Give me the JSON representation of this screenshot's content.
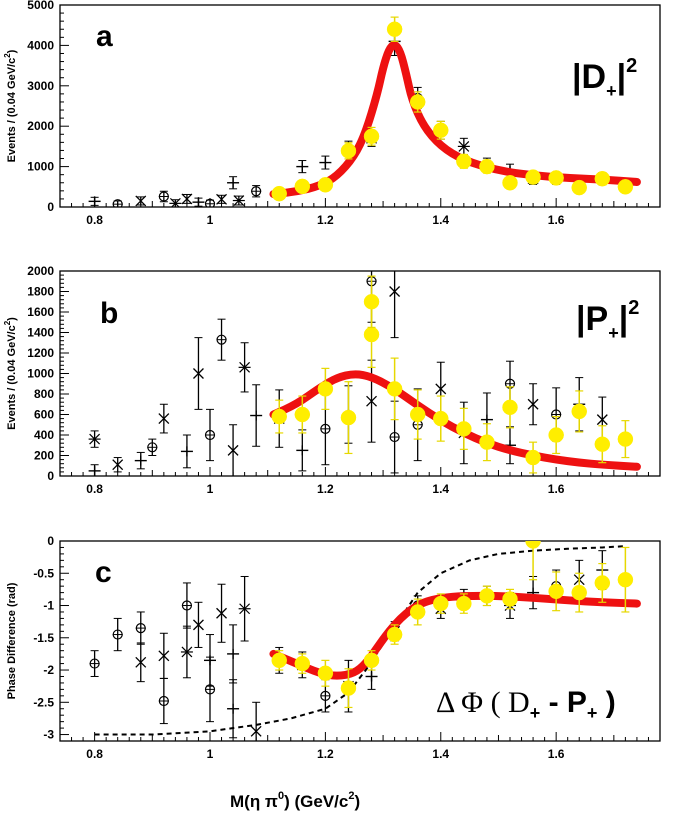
{
  "chart_data": [
    {
      "type": "scatter",
      "panel": "a",
      "title": "a",
      "annotation_main": "|D",
      "annotation_sub": "+",
      "annotation_sup": "2",
      "xlabel": "",
      "ylabel": "Events / (0.04 GeV/c",
      "ylabel_sup": "2",
      "ylabel_close": ")",
      "xlim": [
        0.74,
        1.78
      ],
      "ylim": [
        0,
        5000
      ],
      "xticks": [
        0.8,
        1.0,
        1.2,
        1.4,
        1.6
      ],
      "xtick_labels": [
        "0.8",
        "1",
        "1.2",
        "1.4",
        "1.6"
      ],
      "yticks": [
        0,
        1000,
        2000,
        3000,
        4000,
        5000
      ],
      "ytick_labels": [
        "0",
        "1000",
        "2000",
        "3000",
        "4000",
        "5000"
      ],
      "grid": false,
      "series": [
        {
          "name": "Black markers",
          "x": [
            0.8,
            0.84,
            0.88,
            0.92,
            0.94,
            0.96,
            0.98,
            1.0,
            1.02,
            1.04,
            1.05,
            1.08,
            1.16,
            1.2,
            1.24,
            1.28,
            1.32,
            1.36,
            1.4,
            1.44,
            1.48,
            1.52,
            1.56,
            1.6,
            1.64,
            1.68
          ],
          "y": [
            140,
            70,
            150,
            260,
            90,
            200,
            120,
            80,
            190,
            600,
            160,
            390,
            1000,
            1100,
            1450,
            1700,
            4100,
            2700,
            1900,
            1500,
            1050,
            900,
            700,
            700,
            500,
            700
          ],
          "err": [
            100,
            80,
            100,
            130,
            90,
            110,
            100,
            90,
            100,
            150,
            110,
            140,
            150,
            160,
            180,
            200,
            350,
            260,
            220,
            200,
            160,
            160,
            140,
            140,
            140,
            150
          ],
          "markers": [
            "plus",
            "circle",
            "x",
            "circle",
            "star",
            "x",
            "plus",
            "circle",
            "x",
            "plus",
            "star",
            "circle",
            "plus",
            "plus",
            "circle",
            "star",
            "plus",
            "circle",
            "plus",
            "star",
            "circle",
            "plus",
            "x",
            "circle",
            "plus",
            "star"
          ]
        },
        {
          "name": "Yellow points",
          "x": [
            1.12,
            1.16,
            1.2,
            1.24,
            1.28,
            1.32,
            1.36,
            1.4,
            1.44,
            1.48,
            1.52,
            1.56,
            1.6,
            1.64,
            1.68,
            1.72
          ],
          "y": [
            330,
            510,
            550,
            1390,
            1750,
            4400,
            2600,
            1900,
            1130,
            1000,
            600,
            740,
            720,
            480,
            700,
            500
          ],
          "err": [
            110,
            130,
            140,
            200,
            220,
            300,
            250,
            220,
            170,
            160,
            140,
            140,
            140,
            130,
            140,
            130
          ]
        },
        {
          "name": "Fit",
          "x": [
            1.11,
            1.15,
            1.19,
            1.22,
            1.25,
            1.27,
            1.29,
            1.3,
            1.31,
            1.32,
            1.33,
            1.34,
            1.35,
            1.37,
            1.4,
            1.44,
            1.5,
            1.56,
            1.62,
            1.68,
            1.74
          ],
          "y": [
            320,
            380,
            520,
            760,
            1250,
            1850,
            2800,
            3450,
            3900,
            4050,
            3850,
            3300,
            2650,
            2000,
            1500,
            1150,
            900,
            780,
            720,
            680,
            620
          ]
        }
      ]
    },
    {
      "type": "scatter",
      "panel": "b",
      "title": "b",
      "annotation_main": "|P",
      "annotation_sub": "+",
      "annotation_sup": "2",
      "xlabel": "",
      "ylabel": "Events / (0.04 GeV/c",
      "ylabel_sup": "2",
      "ylabel_close": ")",
      "xlim": [
        0.74,
        1.78
      ],
      "ylim": [
        0,
        2000
      ],
      "xticks": [
        0.8,
        1.0,
        1.2,
        1.4,
        1.6
      ],
      "xtick_labels": [
        "0.8",
        "1",
        "1.2",
        "1.4",
        "1.6"
      ],
      "yticks": [
        0,
        200,
        400,
        600,
        800,
        1000,
        1200,
        1400,
        1600,
        1800,
        2000
      ],
      "ytick_labels": [
        "0",
        "200",
        "400",
        "600",
        "800",
        "1000",
        "1200",
        "1400",
        "1600",
        "1800",
        "2000"
      ],
      "grid": false,
      "series": [
        {
          "name": "Black markers",
          "x": [
            0.8,
            0.8,
            0.84,
            0.88,
            0.9,
            0.92,
            0.96,
            0.98,
            1.0,
            1.02,
            1.04,
            1.06,
            1.08,
            1.12,
            1.16,
            1.2,
            1.24,
            1.28,
            1.28,
            1.32,
            1.32,
            1.36,
            1.4,
            1.44,
            1.48,
            1.52,
            1.52,
            1.56,
            1.6,
            1.64,
            1.68
          ],
          "y": [
            360,
            50,
            110,
            150,
            280,
            560,
            240,
            1000,
            400,
            1330,
            250,
            1060,
            590,
            560,
            250,
            460,
            600,
            1900,
            730,
            1800,
            380,
            500,
            850,
            420,
            550,
            900,
            300,
            700,
            600,
            700,
            550
          ],
          "err": [
            80,
            60,
            70,
            80,
            80,
            140,
            160,
            350,
            250,
            200,
            250,
            240,
            300,
            280,
            200,
            350,
            280,
            400,
            400,
            450,
            350,
            350,
            260,
            300,
            260,
            220,
            180,
            200,
            260,
            260,
            220
          ],
          "markers": [
            "star",
            "plus",
            "x",
            "plus",
            "circle",
            "x",
            "plus",
            "x",
            "circle",
            "circle",
            "x",
            "star",
            "plus",
            "star",
            "plus",
            "circle",
            "plus",
            "circle",
            "x",
            "x",
            "circle",
            "circle",
            "x",
            "star",
            "plus",
            "circle",
            "plus",
            "x",
            "circle",
            "plus",
            "x"
          ]
        },
        {
          "name": "Yellow points",
          "x": [
            1.12,
            1.16,
            1.2,
            1.24,
            1.28,
            1.28,
            1.32,
            1.36,
            1.4,
            1.44,
            1.48,
            1.52,
            1.56,
            1.6,
            1.64,
            1.68,
            1.72
          ],
          "y": [
            580,
            600,
            850,
            570,
            1380,
            1700,
            850,
            600,
            560,
            460,
            330,
            670,
            180,
            400,
            630,
            310,
            360
          ],
          "err": [
            160,
            180,
            200,
            350,
            320,
            250,
            300,
            240,
            220,
            200,
            180,
            200,
            150,
            180,
            200,
            180,
            180
          ]
        },
        {
          "name": "Fit",
          "x": [
            1.11,
            1.15,
            1.19,
            1.22,
            1.25,
            1.28,
            1.32,
            1.36,
            1.4,
            1.44,
            1.48,
            1.52,
            1.56,
            1.6,
            1.64,
            1.68,
            1.74
          ],
          "y": [
            600,
            700,
            860,
            960,
            1000,
            970,
            850,
            690,
            540,
            420,
            320,
            250,
            200,
            160,
            130,
            110,
            90
          ]
        }
      ]
    },
    {
      "type": "scatter",
      "panel": "c",
      "title": "c",
      "annotation_main": "Δ Φ ( D",
      "annotation_sub1": "+",
      "annotation_mid": " - P",
      "annotation_sub2": "+",
      "annotation_end": ")",
      "xlabel": "M(η π",
      "xlabel_sup": "0",
      "xlabel_mid": ") (GeV/c",
      "xlabel_sup2": "2",
      "xlabel_end": ")",
      "ylabel": "Phase Difference (rad)",
      "xlim": [
        0.74,
        1.78
      ],
      "ylim": [
        -3.1,
        0
      ],
      "xticks": [
        0.8,
        1.0,
        1.2,
        1.4,
        1.6
      ],
      "xtick_labels": [
        "0.8",
        "1",
        "1.2",
        "1.4",
        "1.6"
      ],
      "yticks": [
        -3,
        -2.5,
        -2,
        -1.5,
        -1,
        -0.5,
        0
      ],
      "ytick_labels": [
        "-3",
        "-2.5",
        "-2",
        "-1.5",
        "-1",
        "-0.5",
        "0"
      ],
      "grid": false,
      "series": [
        {
          "name": "Black markers",
          "x": [
            0.8,
            0.84,
            0.88,
            0.88,
            0.92,
            0.92,
            0.96,
            0.96,
            0.98,
            1.0,
            1.0,
            1.02,
            1.04,
            1.04,
            1.06,
            1.08,
            1.12,
            1.16,
            1.2,
            1.24,
            1.28,
            1.32,
            1.36,
            1.4,
            1.44,
            1.48,
            1.52,
            1.56,
            1.6,
            1.64,
            1.68
          ],
          "y": [
            -1.9,
            -1.45,
            -1.35,
            -1.88,
            -1.78,
            -2.48,
            -1.0,
            -1.72,
            -1.3,
            -1.85,
            -2.3,
            -1.12,
            -1.75,
            -2.6,
            -1.05,
            -2.95,
            -1.85,
            -1.92,
            -2.4,
            -2.25,
            -2.1,
            -1.4,
            -1.0,
            -1.05,
            -0.9,
            -0.85,
            -1.0,
            -0.8,
            -0.7,
            -0.6,
            -0.45
          ],
          "err": [
            0.2,
            0.25,
            0.25,
            0.3,
            0.35,
            0.35,
            0.35,
            0.4,
            0.35,
            0.4,
            0.5,
            0.45,
            0.45,
            0.45,
            0.5,
            0.45,
            0.2,
            0.2,
            0.25,
            0.4,
            0.2,
            0.15,
            0.15,
            0.15,
            0.15,
            0.15,
            0.2,
            0.25,
            0.25,
            0.3,
            0.3
          ],
          "markers": [
            "circle",
            "circle",
            "circle",
            "x",
            "x",
            "circle",
            "circle",
            "star",
            "x",
            "plus",
            "circle",
            "x",
            "plus",
            "plus",
            "star",
            "x",
            "plus",
            "x",
            "circle",
            "star",
            "plus",
            "star",
            "circle",
            "x",
            "plus",
            "circle",
            "star",
            "plus",
            "circle",
            "x",
            "plus"
          ]
        },
        {
          "name": "Yellow points",
          "x": [
            1.12,
            1.16,
            1.2,
            1.24,
            1.28,
            1.32,
            1.36,
            1.4,
            1.44,
            1.48,
            1.52,
            1.56,
            1.6,
            1.64,
            1.68,
            1.72
          ],
          "y": [
            -1.85,
            -1.9,
            -2.05,
            -2.28,
            -1.85,
            -1.45,
            -1.1,
            -0.97,
            -0.97,
            -0.85,
            -0.9,
            0.0,
            -0.78,
            -0.8,
            -0.65,
            -0.6
          ],
          "err": [
            0.15,
            0.15,
            0.2,
            0.3,
            0.15,
            0.15,
            0.2,
            0.15,
            0.15,
            0.15,
            0.15,
            0.6,
            0.3,
            0.3,
            0.3,
            0.5
          ]
        },
        {
          "name": "Fit",
          "x": [
            1.11,
            1.15,
            1.19,
            1.22,
            1.25,
            1.27,
            1.29,
            1.31,
            1.33,
            1.35,
            1.37,
            1.4,
            1.44,
            1.5,
            1.56,
            1.62,
            1.68,
            1.74
          ],
          "y": [
            -1.75,
            -1.9,
            -2.05,
            -2.1,
            -2.05,
            -1.9,
            -1.65,
            -1.4,
            -1.2,
            -1.05,
            -0.95,
            -0.88,
            -0.85,
            -0.85,
            -0.88,
            -0.92,
            -0.95,
            -0.97
          ]
        },
        {
          "name": "Dashed reference",
          "x": [
            0.8,
            0.9,
            1.0,
            1.08,
            1.14,
            1.2,
            1.24,
            1.27,
            1.3,
            1.33,
            1.36,
            1.4,
            1.45,
            1.5,
            1.56,
            1.62,
            1.68,
            1.72
          ],
          "y": [
            -3.0,
            -3.0,
            -2.95,
            -2.85,
            -2.75,
            -2.6,
            -2.35,
            -2.0,
            -1.6,
            -1.2,
            -0.8,
            -0.5,
            -0.3,
            -0.2,
            -0.15,
            -0.12,
            -0.1,
            -0.08
          ]
        }
      ]
    }
  ]
}
